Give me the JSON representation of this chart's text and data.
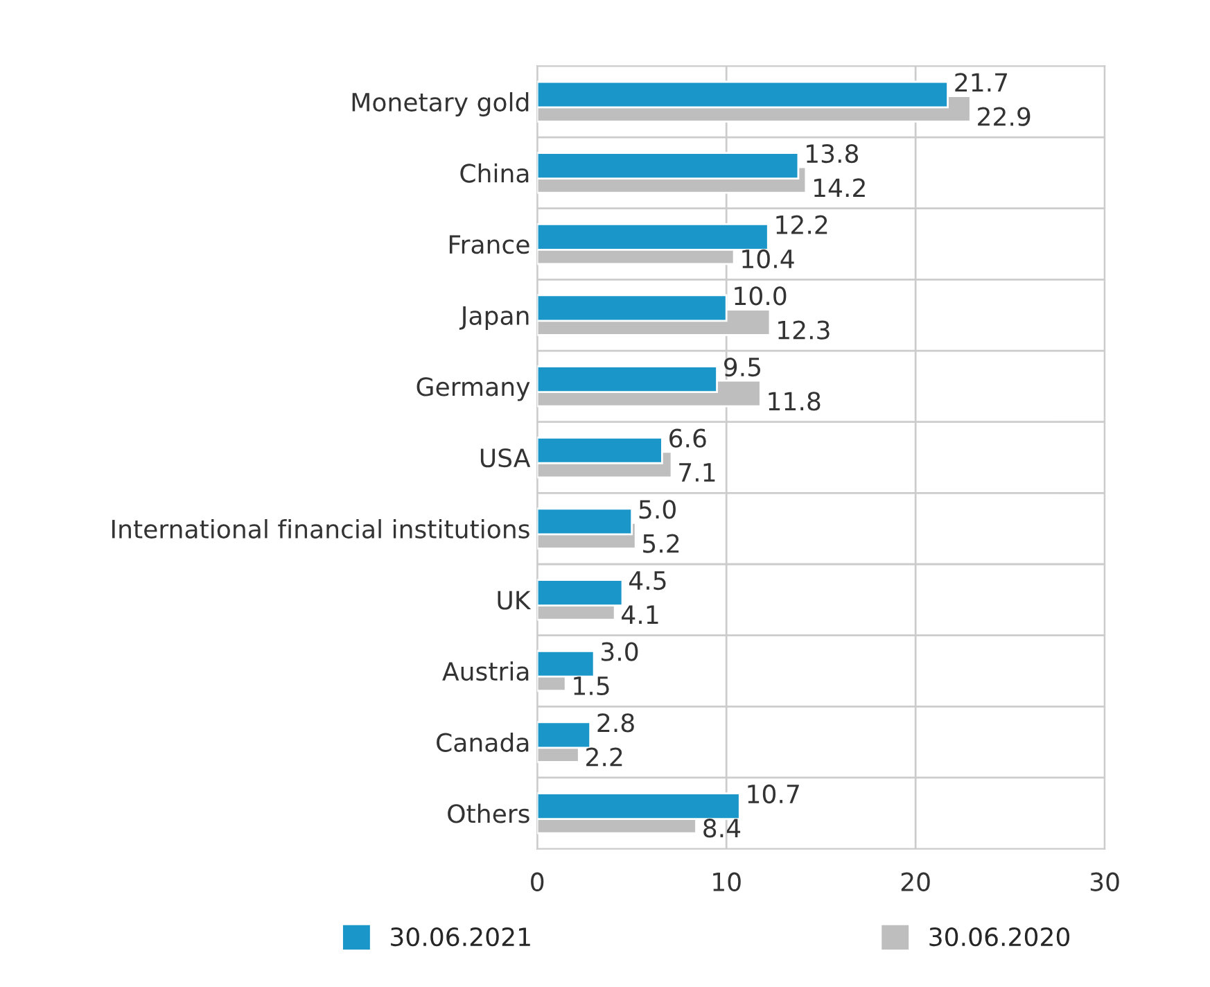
{
  "chart_data": {
    "type": "bar",
    "orientation": "horizontal",
    "categories": [
      "Monetary gold",
      "China",
      "France",
      "Japan",
      "Germany",
      "USA",
      "International financial institutions",
      "UK",
      "Austria",
      "Canada",
      "Others"
    ],
    "series": [
      {
        "name": "30.06.2021",
        "color": "#1a96c8",
        "values": [
          21.7,
          13.8,
          12.2,
          10.0,
          9.5,
          6.6,
          5.0,
          4.5,
          3.0,
          2.8,
          10.7
        ],
        "value_labels": [
          "21.7",
          "13.8",
          "12.2",
          "10.0",
          "9.5",
          "6.6",
          "5.0",
          "4.5",
          "3.0",
          "2.8",
          "10.7"
        ]
      },
      {
        "name": "30.06.2020",
        "color": "#bebebe",
        "values": [
          22.9,
          14.2,
          10.4,
          12.3,
          11.8,
          7.1,
          5.2,
          4.1,
          1.5,
          2.2,
          8.4
        ],
        "value_labels": [
          "22.9",
          "14.2",
          "10.4",
          "12.3",
          "11.8",
          "7.1",
          "5.2",
          "4.1",
          "1.5",
          "2.2",
          "8.4"
        ]
      }
    ],
    "xlim": [
      0,
      30
    ],
    "xticks": [
      0,
      10,
      20,
      30
    ],
    "grid": true,
    "legend": "bottom"
  }
}
